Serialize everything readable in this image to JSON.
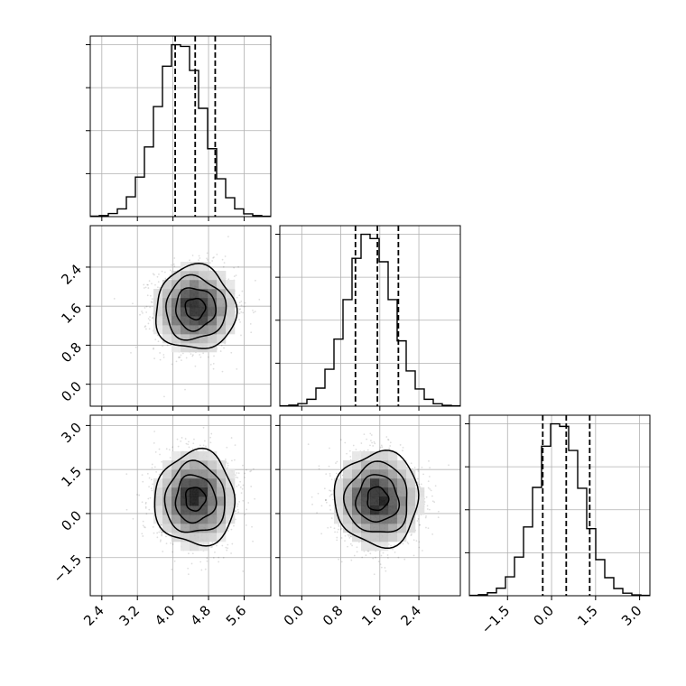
{
  "chart_data": {
    "type": "corner",
    "grid": true,
    "parameters": [
      {
        "index": 0,
        "range": [
          2.14,
          6.2
        ],
        "ticks": [
          2.4,
          3.2,
          4.0,
          4.8,
          5.6
        ],
        "tick_labels": [
          "2.4",
          "3.2",
          "4.0",
          "4.8",
          "5.6"
        ],
        "quantiles": [
          4.05,
          4.5,
          4.95
        ],
        "histogram": {
          "bin_edges": [
            2.14,
            2.343,
            2.546,
            2.749,
            2.952,
            3.155,
            3.358,
            3.561,
            3.764,
            3.967,
            4.17,
            4.373,
            4.576,
            4.779,
            4.982,
            5.185,
            5.388,
            5.591,
            5.794,
            5.997,
            6.2
          ],
          "counts": [
            3,
            6,
            18,
            45,
            115,
            230,
            405,
            640,
            875,
            1000,
            990,
            850,
            630,
            395,
            220,
            110,
            45,
            16,
            6,
            2
          ]
        }
      },
      {
        "index": 1,
        "range": [
          -0.45,
          3.25
        ],
        "ticks": [
          0.0,
          0.8,
          1.6,
          2.4
        ],
        "tick_labels": [
          "0.0",
          "0.8",
          "1.6",
          "2.4"
        ],
        "quantiles": [
          1.1,
          1.55,
          1.98
        ],
        "histogram": {
          "bin_edges": [
            -0.45,
            -0.265,
            -0.08,
            0.105,
            0.29,
            0.475,
            0.66,
            0.845,
            1.03,
            1.215,
            1.4,
            1.585,
            1.77,
            1.955,
            2.14,
            2.325,
            2.51,
            2.695,
            2.88,
            3.065,
            3.25
          ],
          "counts": [
            2,
            6,
            15,
            40,
            105,
            215,
            390,
            620,
            860,
            1000,
            975,
            840,
            620,
            380,
            205,
            100,
            40,
            14,
            5,
            2
          ]
        }
      },
      {
        "index": 2,
        "range": [
          -2.8,
          3.35
        ],
        "ticks": [
          -1.5,
          0.0,
          1.5,
          3.0
        ],
        "tick_labels": [
          "−1.5",
          "0.0",
          "1.5",
          "3.0"
        ],
        "quantiles": [
          -0.3,
          0.5,
          1.3
        ],
        "histogram": {
          "bin_edges": [
            -2.8,
            -2.4925,
            -2.185,
            -1.8775,
            -1.57,
            -1.2625,
            -0.955,
            -0.6475,
            -0.34,
            -0.0325,
            0.275,
            0.5825,
            0.89,
            1.1975,
            1.505,
            1.8125,
            2.12,
            2.4275,
            2.735,
            3.0425,
            3.35
          ],
          "counts": [
            2,
            6,
            17,
            44,
            110,
            225,
            400,
            630,
            870,
            1000,
            985,
            845,
            625,
            390,
            210,
            105,
            42,
            15,
            5,
            2
          ]
        }
      }
    ],
    "pairs": [
      {
        "x": 0,
        "y": 1,
        "center": [
          4.5,
          1.55
        ],
        "sigma": [
          0.45,
          0.43
        ],
        "correlation": 0.0
      },
      {
        "x": 0,
        "y": 2,
        "center": [
          4.5,
          0.5
        ],
        "sigma": [
          0.45,
          0.8
        ],
        "correlation": 0.0
      },
      {
        "x": 1,
        "y": 2,
        "center": [
          1.55,
          0.5
        ],
        "sigma": [
          0.43,
          0.8
        ],
        "correlation": 0.0
      }
    ],
    "contour_levels_sigma": [
      0.5,
      1.0,
      1.5,
      2.0
    ]
  }
}
